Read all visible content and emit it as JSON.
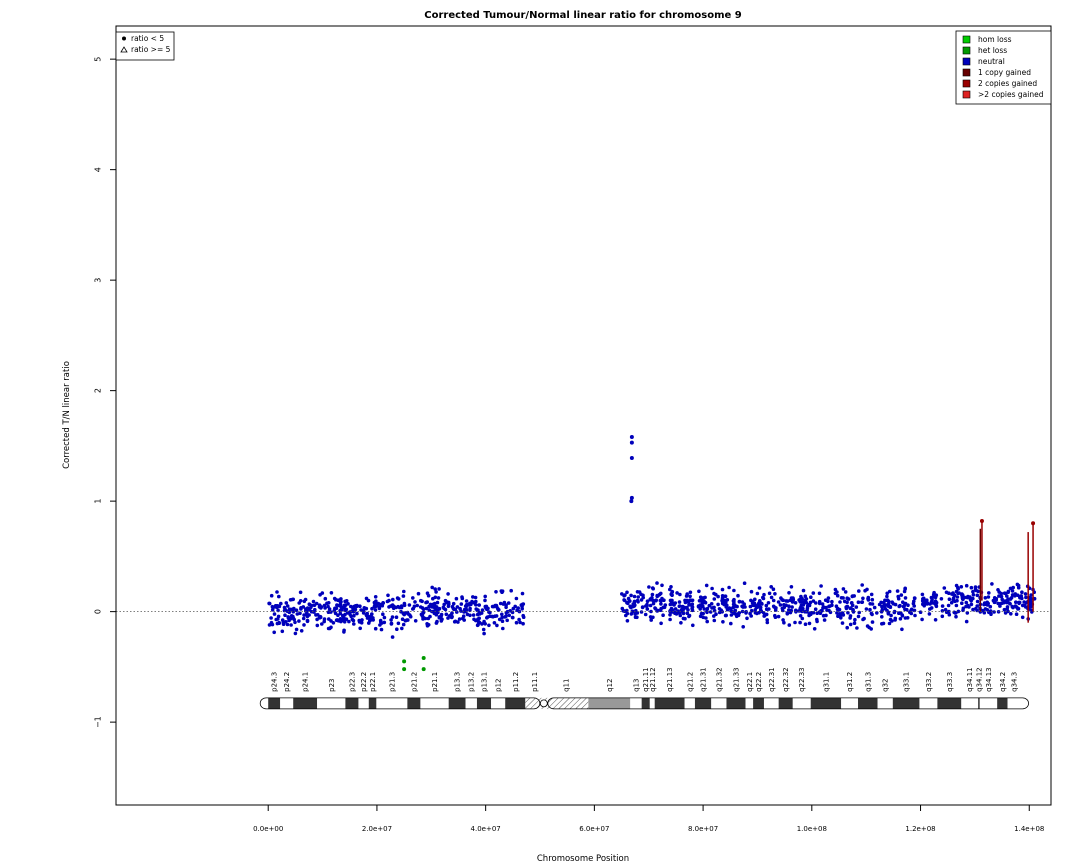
{
  "chart_data": {
    "type": "scatter",
    "title": "Corrected Tumour/Normal linear ratio for chromosome  9",
    "xlabel": "Chromosome Position",
    "ylabel": "Corrected T/N linear ratio",
    "xlim": [
      -28000000,
      144000000
    ],
    "ylim": [
      -1.75,
      5.3
    ],
    "x_ticks": [
      {
        "value": 0,
        "label": "0.0e+00"
      },
      {
        "value": 20000000,
        "label": "2.0e+07"
      },
      {
        "value": 40000000,
        "label": "4.0e+07"
      },
      {
        "value": 60000000,
        "label": "6.0e+07"
      },
      {
        "value": 80000000,
        "label": "8.0e+07"
      },
      {
        "value": 100000000,
        "label": "1.0e+08"
      },
      {
        "value": 120000000,
        "label": "1.2e+08"
      },
      {
        "value": 140000000,
        "label": "1.4e+08"
      }
    ],
    "y_ticks": [
      {
        "value": -1,
        "label": "−1"
      },
      {
        "value": 0,
        "label": "0"
      },
      {
        "value": 1,
        "label": "1"
      },
      {
        "value": 2,
        "label": "2"
      },
      {
        "value": 3,
        "label": "3"
      },
      {
        "value": 4,
        "label": "4"
      },
      {
        "value": 5,
        "label": "5"
      }
    ],
    "reference_line": 0,
    "shape_legend": {
      "position": "top-left",
      "entries": [
        {
          "symbol": "circle",
          "label": "ratio < 5"
        },
        {
          "symbol": "triangle",
          "label": "ratio >= 5"
        }
      ]
    },
    "color_legend": {
      "position": "top-right",
      "entries": [
        {
          "label": "hom loss",
          "color": "#00cc00"
        },
        {
          "label": "het loss",
          "color": "#009900"
        },
        {
          "label": "neutral",
          "color": "#0000bb"
        },
        {
          "label": "1 copy gained",
          "color": "#660000"
        },
        {
          "label": "2 copies gained",
          "color": "#990000"
        },
        {
          "label": ">2 copies gained",
          "color": "#dd2222"
        }
      ]
    },
    "segments_summary": [
      {
        "x_start": 0,
        "x_end": 47000000,
        "ratio_mean": 0.0,
        "ratio_spread": 0.22,
        "state": "neutral"
      },
      {
        "x_start": 65000000,
        "x_end": 141000000,
        "ratio_mean": 0.05,
        "ratio_spread": 0.22,
        "state": "neutral"
      }
    ],
    "highlight_points": [
      {
        "x": 25000000,
        "y": -0.45,
        "state": "het loss"
      },
      {
        "x": 25000000,
        "y": -0.52,
        "state": "het loss"
      },
      {
        "x": 28600000,
        "y": -0.42,
        "state": "het loss"
      },
      {
        "x": 28600000,
        "y": -0.52,
        "state": "het loss"
      },
      {
        "x": 66900000,
        "y": 1.58,
        "state": "neutral"
      },
      {
        "x": 66900000,
        "y": 1.53,
        "state": "neutral"
      },
      {
        "x": 66900000,
        "y": 1.39,
        "state": "neutral"
      },
      {
        "x": 66900000,
        "y": 1.03,
        "state": "neutral"
      },
      {
        "x": 66800000,
        "y": 1.0,
        "state": "neutral"
      },
      {
        "x": 131300000,
        "y": 0.82,
        "state": "2 copies gained"
      },
      {
        "x": 140700000,
        "y": 0.8,
        "state": "2 copies gained"
      }
    ],
    "gain_segments": [
      {
        "x": 131000000,
        "y_min": 0.0,
        "y_max": 0.75,
        "state": "1 copy gained"
      },
      {
        "x": 131300000,
        "y_min": 0.1,
        "y_max": 0.82,
        "state": "2 copies gained"
      },
      {
        "x": 139800000,
        "y_min": -0.1,
        "y_max": 0.72,
        "state": "2 copies gained"
      },
      {
        "x": 140700000,
        "y_min": 0.0,
        "y_max": 0.8,
        "state": "2 copies gained"
      }
    ],
    "ideogram": {
      "y": -0.83,
      "bands": [
        {
          "name": "p24.3",
          "start": 0,
          "end": 2200000,
          "stain": "gpos"
        },
        {
          "name": "p24.2",
          "start": 2200000,
          "end": 4600000,
          "stain": "gneg"
        },
        {
          "name": "p24.1",
          "start": 4600000,
          "end": 9000000,
          "stain": "gpos"
        },
        {
          "name": "p23",
          "start": 9000000,
          "end": 14200000,
          "stain": "gneg"
        },
        {
          "name": "p22.3",
          "start": 14200000,
          "end": 16600000,
          "stain": "gpos"
        },
        {
          "name": "p22.2",
          "start": 16600000,
          "end": 18500000,
          "stain": "gneg"
        },
        {
          "name": "p22.1",
          "start": 18500000,
          "end": 19900000,
          "stain": "gpos"
        },
        {
          "name": "p21.3",
          "start": 19900000,
          "end": 25600000,
          "stain": "gneg"
        },
        {
          "name": "p21.2",
          "start": 25600000,
          "end": 28000000,
          "stain": "gpos"
        },
        {
          "name": "p21.1",
          "start": 28000000,
          "end": 33200000,
          "stain": "gneg"
        },
        {
          "name": "p13.3",
          "start": 33200000,
          "end": 36300000,
          "stain": "gpos"
        },
        {
          "name": "p13.2",
          "start": 36300000,
          "end": 38400000,
          "stain": "gneg"
        },
        {
          "name": "p13.1",
          "start": 38400000,
          "end": 41000000,
          "stain": "gpos"
        },
        {
          "name": "p12",
          "start": 41000000,
          "end": 43600000,
          "stain": "gneg"
        },
        {
          "name": "p11.2",
          "start": 43600000,
          "end": 47300000,
          "stain": "gpos"
        },
        {
          "name": "p11.1",
          "start": 47300000,
          "end": 50700000,
          "stain": "gvar"
        },
        {
          "name": "q11",
          "start": 50700000,
          "end": 58900000,
          "stain": "gvar"
        },
        {
          "name": "q12",
          "start": 58900000,
          "end": 66600000,
          "stain": "stalk"
        },
        {
          "name": "q13",
          "start": 66600000,
          "end": 68700000,
          "stain": "gneg"
        },
        {
          "name": "q21.11",
          "start": 68700000,
          "end": 70200000,
          "stain": "gpos"
        },
        {
          "name": "q21.12",
          "start": 70200000,
          "end": 71100000,
          "stain": "gneg"
        },
        {
          "name": "q21.13",
          "start": 71100000,
          "end": 76600000,
          "stain": "gpos"
        },
        {
          "name": "q21.2",
          "start": 76600000,
          "end": 78500000,
          "stain": "gneg"
        },
        {
          "name": "q21.31",
          "start": 78500000,
          "end": 81500000,
          "stain": "gpos"
        },
        {
          "name": "q21.32",
          "start": 81500000,
          "end": 84300000,
          "stain": "gneg"
        },
        {
          "name": "q21.33",
          "start": 84300000,
          "end": 87800000,
          "stain": "gpos"
        },
        {
          "name": "q22.1",
          "start": 87800000,
          "end": 89200000,
          "stain": "gneg"
        },
        {
          "name": "q22.2",
          "start": 89200000,
          "end": 91200000,
          "stain": "gpos"
        },
        {
          "name": "q22.31",
          "start": 91200000,
          "end": 93900000,
          "stain": "gneg"
        },
        {
          "name": "q22.32",
          "start": 93900000,
          "end": 96500000,
          "stain": "gpos"
        },
        {
          "name": "q22.33",
          "start": 96500000,
          "end": 99800000,
          "stain": "gneg"
        },
        {
          "name": "q31.1",
          "start": 99800000,
          "end": 105400000,
          "stain": "gpos"
        },
        {
          "name": "q31.2",
          "start": 105400000,
          "end": 108500000,
          "stain": "gneg"
        },
        {
          "name": "q31.3",
          "start": 108500000,
          "end": 112100000,
          "stain": "gpos"
        },
        {
          "name": "q32",
          "start": 112100000,
          "end": 114900000,
          "stain": "gneg"
        },
        {
          "name": "q33.1",
          "start": 114900000,
          "end": 119800000,
          "stain": "gpos"
        },
        {
          "name": "q33.2",
          "start": 119800000,
          "end": 123100000,
          "stain": "gneg"
        },
        {
          "name": "q33.3",
          "start": 123100000,
          "end": 127500000,
          "stain": "gpos"
        },
        {
          "name": "q34.11",
          "start": 127500000,
          "end": 130600000,
          "stain": "gneg"
        },
        {
          "name": "q34.12",
          "start": 130600000,
          "end": 130900000,
          "stain": "gpos"
        },
        {
          "name": "q34.13",
          "start": 130900000,
          "end": 134100000,
          "stain": "gneg"
        },
        {
          "name": "q34.2",
          "start": 134100000,
          "end": 136000000,
          "stain": "gpos"
        },
        {
          "name": "q34.3",
          "start": 136000000,
          "end": 138400000,
          "stain": "gneg"
        }
      ],
      "centromere": 50700000,
      "chrom_end": 138400000
    }
  }
}
